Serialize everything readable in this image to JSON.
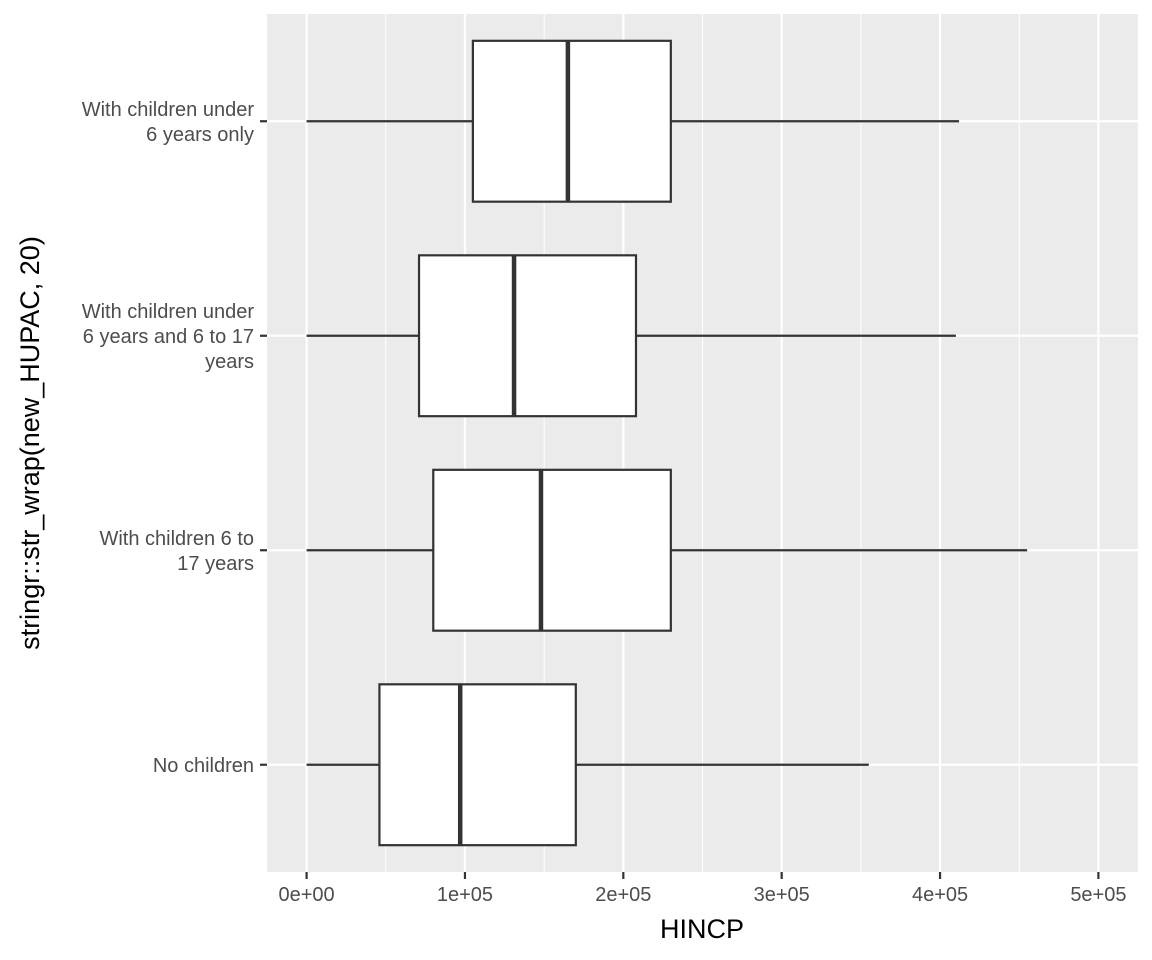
{
  "chart_data": {
    "type": "boxplot",
    "orientation": "horizontal",
    "xlabel": "HINCP",
    "ylabel": "stringr::str_wrap(new_HUPAC, 20)",
    "xlim": [
      -25000,
      525000
    ],
    "x_ticks": [
      0,
      100000,
      200000,
      300000,
      400000,
      500000
    ],
    "x_tick_labels": [
      "0e+00",
      "1e+05",
      "2e+05",
      "3e+05",
      "4e+05",
      "5e+05"
    ],
    "grid": true,
    "categories": [
      {
        "label_lines": [
          "No children"
        ],
        "whisker_low": 0,
        "q1": 46000,
        "median": 97000,
        "q3": 170000,
        "whisker_high": 355000
      },
      {
        "label_lines": [
          "With children 6 to",
          "17 years"
        ],
        "whisker_low": 0,
        "q1": 80000,
        "median": 148000,
        "q3": 230000,
        "whisker_high": 455000
      },
      {
        "label_lines": [
          "With children under",
          "6 years and 6 to 17",
          "years"
        ],
        "whisker_low": 0,
        "q1": 71000,
        "median": 131000,
        "q3": 208000,
        "whisker_high": 410000
      },
      {
        "label_lines": [
          "With children under",
          "6 years only"
        ],
        "whisker_low": 0,
        "q1": 105000,
        "median": 165000,
        "q3": 230000,
        "whisker_high": 412000
      }
    ],
    "colors": {
      "panel": "#ebebeb",
      "grid": "#ffffff",
      "box_fill": "#ffffff",
      "box_stroke": "#333333",
      "tick": "#333333"
    }
  }
}
